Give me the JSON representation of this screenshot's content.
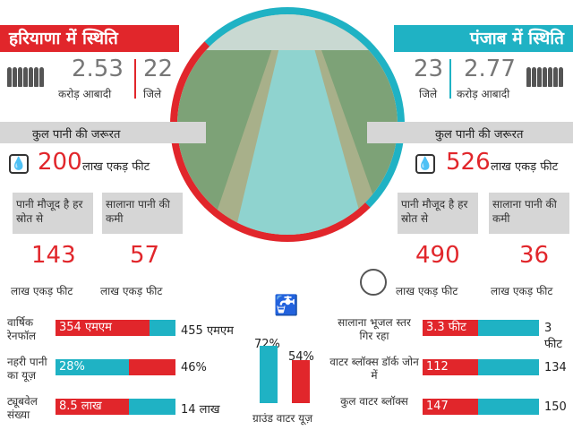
{
  "haryana": {
    "title": "हरियाणा में स्थिति",
    "population_value": "2.53",
    "population_label": "करोड़ आबादी",
    "districts_value": "22",
    "districts_label": "जिले",
    "need_title": "कुल पानी की जरूरत",
    "need_value": "200",
    "need_unit": "लाख एकड़ फीट",
    "available_label": "पानी मौजूद है हर स्रोत से",
    "shortage_label": "सालाना पानी की कमी",
    "available_value": "143",
    "shortage_value": "57",
    "unit1": "लाख एकड़ फीट",
    "unit2": "लाख एकड़ फीट",
    "rain_label": "वार्षिक रेनफॉल",
    "rain_red": "354 एमएम",
    "rain_end": "455 एमएम",
    "canal_label": "नहरी पानी का यूज़",
    "canal_value": "28%",
    "canal_end": "46%",
    "tube_label": "ट्यूबवेल संख्या",
    "tube_red": "8.5 लाख",
    "tube_end": "14 लाख",
    "rain_fraction": 0.78,
    "canal_fraction": 0.61,
    "tube_fraction": 0.61
  },
  "punjab": {
    "title": "पंजाब में स्थिति",
    "districts_value": "23",
    "districts_label": "जिले",
    "population_value": "2.77",
    "population_label": "करोड़ आबादी",
    "need_title": "कुल पानी की जरूरत",
    "need_value": "526",
    "need_unit": "लाख एकड़ फीट",
    "available_label": "पानी मौजूद है हर स्रोत से",
    "shortage_label": "सालाना पानी की कमी",
    "available_value": "490",
    "shortage_value": "36",
    "unit1": "लाख एकड़ फीट",
    "unit2": "लाख एकड़ फीट",
    "fall_label": "सालाना भूजल स्तर गिर रहा",
    "fall_red": "3.3 फीट",
    "fall_end": "3 फीट",
    "dark_label": "वाटर ब्लॉक्स डॉर्क जोन में",
    "dark_red": "112",
    "dark_end": "134",
    "total_label": "कुल वाटर ब्लॉक्स",
    "total_red": "147",
    "total_end": "150"
  },
  "ground_water": {
    "label": "ग्राउंड वाटर यूज़",
    "teal_value": "72%",
    "red_value": "54%",
    "teal_fraction": 0.72,
    "red_fraction": 0.54
  },
  "colors": {
    "red": "#e1262b",
    "teal": "#1fb2c4",
    "gray": "#d6d6d6"
  }
}
